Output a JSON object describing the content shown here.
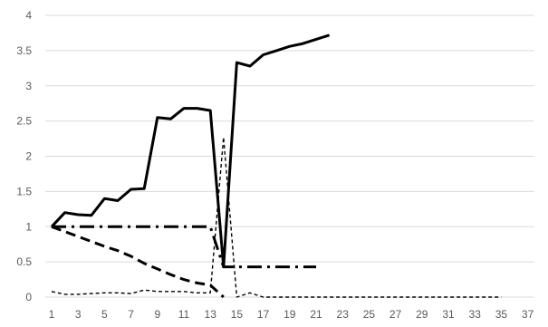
{
  "chart_data": {
    "type": "line",
    "title": "",
    "xlabel": "",
    "ylabel": "",
    "x": [
      1,
      2,
      3,
      4,
      5,
      6,
      7,
      8,
      9,
      10,
      11,
      12,
      13,
      14,
      15,
      16,
      17,
      18,
      19,
      20,
      21,
      22,
      23,
      24,
      25,
      26,
      27,
      28,
      29,
      30,
      31,
      32,
      33,
      34,
      35,
      36,
      37
    ],
    "x_tick_labels": [
      "1",
      "3",
      "5",
      "7",
      "9",
      "11",
      "13",
      "15",
      "17",
      "19",
      "21",
      "23",
      "25",
      "27",
      "29",
      "31",
      "33",
      "35",
      "37"
    ],
    "ylim": [
      0,
      4
    ],
    "y_tick_labels": [
      "0",
      "0.5",
      "1",
      "1.5",
      "2",
      "2.5",
      "3",
      "3.5",
      "4"
    ],
    "grid": "horizontal",
    "legend": "none",
    "series": [
      {
        "style": "solid",
        "x": [
          1,
          2,
          3,
          4,
          5,
          6,
          7,
          8,
          9,
          10,
          11,
          12,
          13,
          14,
          15,
          16,
          17,
          18,
          19,
          20,
          21,
          22
        ],
        "values": [
          1.0,
          1.2,
          1.17,
          1.16,
          1.4,
          1.37,
          1.53,
          1.54,
          2.55,
          2.53,
          2.68,
          2.68,
          2.65,
          0.43,
          3.33,
          3.28,
          3.44,
          3.5,
          3.56,
          3.6,
          3.66,
          3.72
        ]
      },
      {
        "style": "dash-dot",
        "x": [
          1,
          2,
          3,
          4,
          5,
          6,
          7,
          8,
          9,
          10,
          11,
          12,
          13,
          14,
          15,
          16,
          17,
          18,
          19,
          20,
          21
        ],
        "values": [
          1.0,
          1.0,
          1.0,
          1.0,
          1.0,
          1.0,
          1.0,
          1.0,
          1.0,
          1.0,
          1.0,
          1.0,
          1.0,
          0.43,
          0.43,
          0.43,
          0.43,
          0.43,
          0.43,
          0.43,
          0.43
        ]
      },
      {
        "style": "dashed",
        "x": [
          1,
          2,
          3,
          4,
          5,
          6,
          7,
          8,
          9,
          10,
          11,
          12,
          13,
          14
        ],
        "values": [
          1.0,
          0.93,
          0.86,
          0.79,
          0.72,
          0.66,
          0.58,
          0.48,
          0.4,
          0.32,
          0.25,
          0.2,
          0.17,
          0.0
        ]
      },
      {
        "style": "short-dash",
        "x": [
          1,
          2,
          3,
          4,
          5,
          6,
          7,
          8,
          9,
          10,
          11,
          12,
          13,
          14,
          15,
          16,
          17,
          18,
          19,
          20,
          21,
          22,
          23,
          24,
          25,
          26,
          27,
          28,
          29,
          30,
          31,
          32,
          33,
          34,
          35
        ],
        "values": [
          0.08,
          0.04,
          0.04,
          0.05,
          0.06,
          0.06,
          0.05,
          0.1,
          0.08,
          0.08,
          0.08,
          0.06,
          0.06,
          2.27,
          0.0,
          0.06,
          0.0,
          0.0,
          0.0,
          0.0,
          0.0,
          0.0,
          0.0,
          0.0,
          0.0,
          0.0,
          0.0,
          0.0,
          0.0,
          0.0,
          0.0,
          0.0,
          0.0,
          0.0,
          0.0
        ]
      }
    ]
  }
}
